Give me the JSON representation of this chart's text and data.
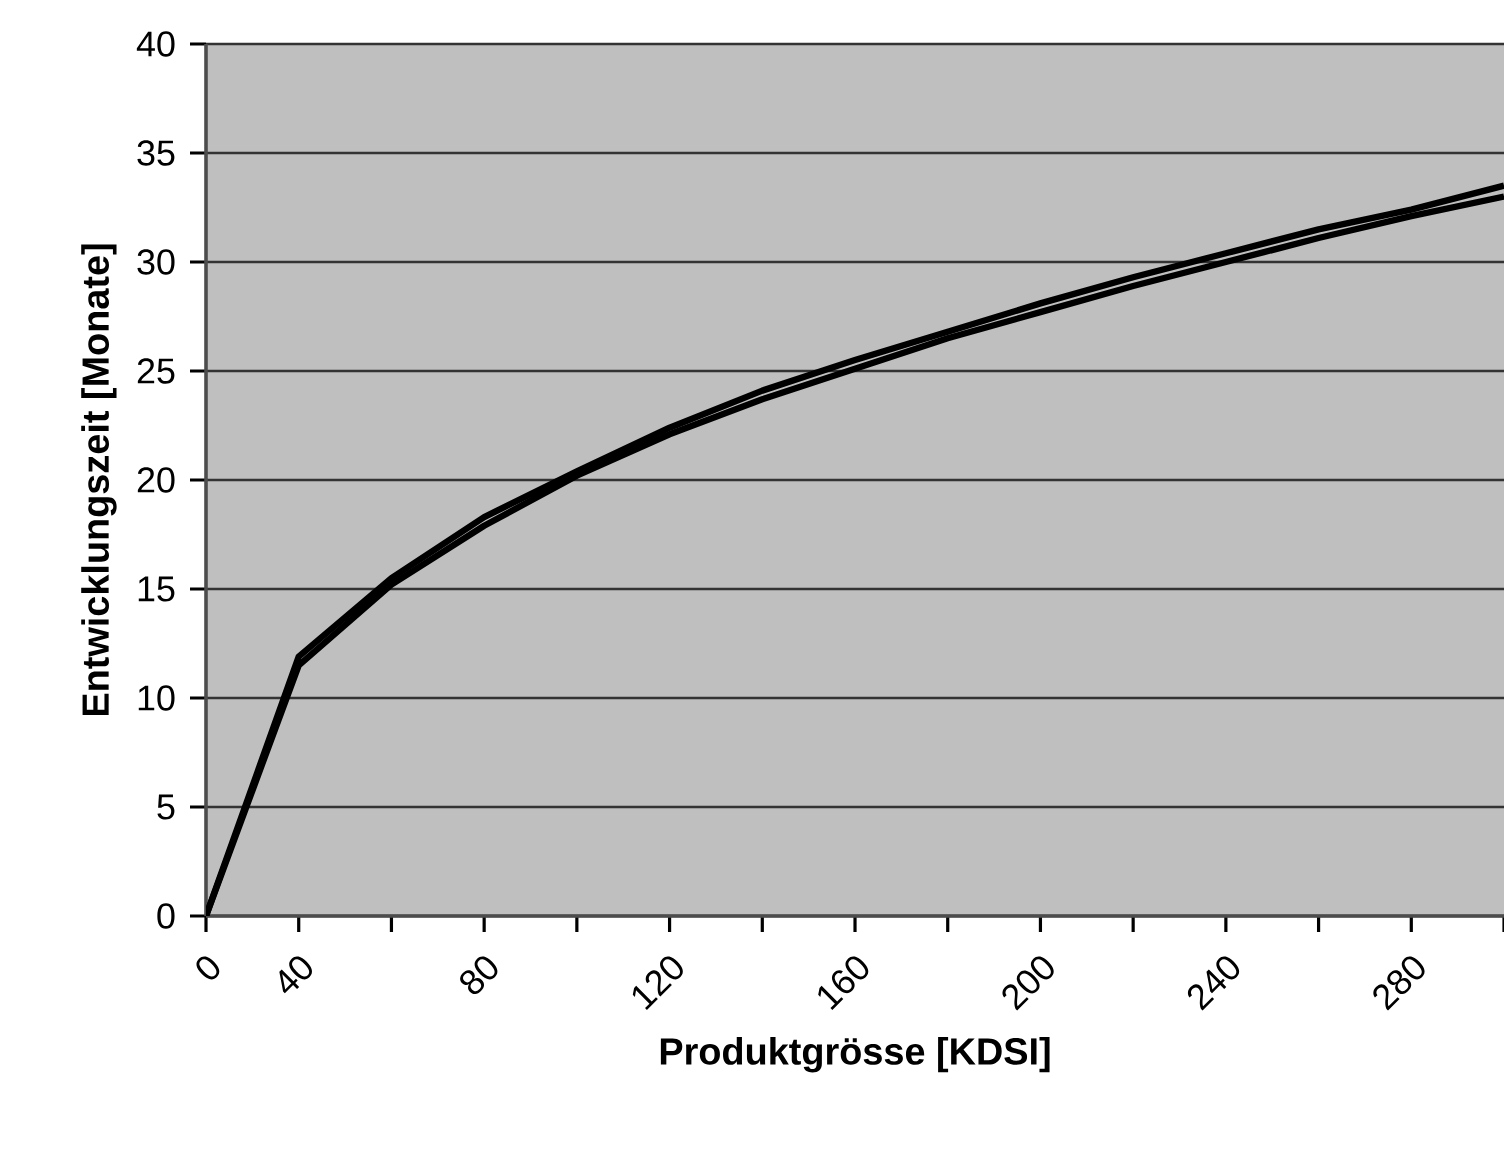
{
  "chart_data": {
    "type": "line",
    "xlabel": "Produktgrösse [KDSI]",
    "ylabel": "Entwicklungszeit [Monate]",
    "categories": [
      "0",
      "40",
      null,
      "80",
      null,
      "120",
      null,
      "160",
      null,
      "200",
      null,
      "240",
      null,
      "280",
      null
    ],
    "series": [
      {
        "color": "#000000",
        "values": [
          0,
          11.9,
          15.5,
          18.3,
          20.4,
          22.4,
          24.1,
          25.5,
          26.8,
          28.1,
          29.3,
          30.4,
          31.5,
          32.4,
          33.5
        ]
      },
      {
        "color": "#000000",
        "values": [
          0,
          11.5,
          15.2,
          17.9,
          20.2,
          22.1,
          23.7,
          25.1,
          26.5,
          27.7,
          28.9,
          30.0,
          31.1,
          32.1,
          33.0
        ]
      }
    ],
    "ylim": [
      0,
      40
    ],
    "yticks": [
      0,
      5,
      10,
      15,
      20,
      25,
      30,
      35,
      40
    ],
    "grid": "y",
    "marker": "none",
    "line_style": "solid"
  }
}
